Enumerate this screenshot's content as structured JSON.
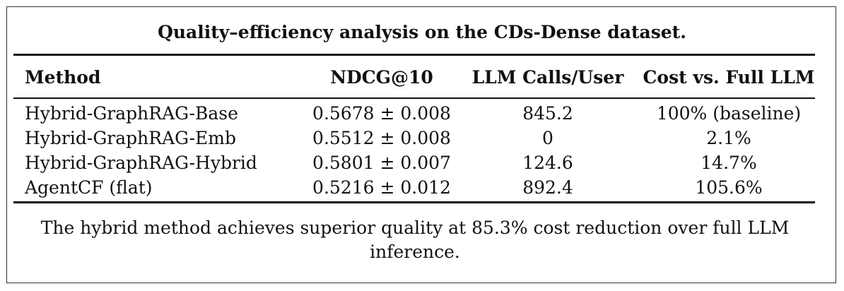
{
  "table": {
    "caption": "Quality–efficiency analysis on the CDs-Dense dataset.",
    "headers": [
      "Method",
      "NDCG@10",
      "LLM Calls/User",
      "Cost vs. Full LLM"
    ],
    "rows": [
      [
        "Hybrid-GraphRAG-Base",
        "0.5678 ± 0.008",
        "845.2",
        "100% (baseline)"
      ],
      [
        "Hybrid-GraphRAG-Emb",
        "0.5512 ± 0.008",
        "0",
        "2.1%"
      ],
      [
        "Hybrid-GraphRAG-Hybrid",
        "0.5801 ± 0.007",
        "124.6",
        "14.7%"
      ],
      [
        "AgentCF (flat)",
        "0.5216 ± 0.012",
        "892.4",
        "105.6%"
      ]
    ],
    "note": "The hybrid method achieves superior quality at 85.3% cost reduction over full LLM inference."
  }
}
